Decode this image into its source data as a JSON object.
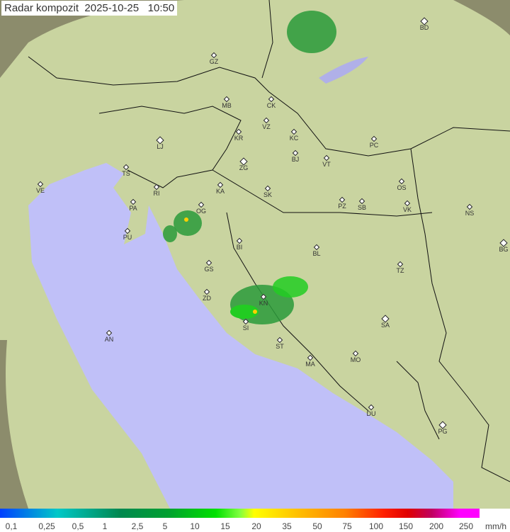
{
  "header": {
    "title": "Radar kompozit",
    "date": "2025-10-25",
    "time": "10:50"
  },
  "colors": {
    "land": "#c9d4a0",
    "sea": "#c0c0f8",
    "outside": "#8c8c6c",
    "rain_light": "#2a9a3a",
    "rain_mid": "#22cc22",
    "rain_heavy": "#ffd000"
  },
  "cities": [
    {
      "code": "BD",
      "big": true
    },
    {
      "code": "GZ"
    },
    {
      "code": "MB"
    },
    {
      "code": "CK"
    },
    {
      "code": "VZ"
    },
    {
      "code": "KR"
    },
    {
      "code": "KC"
    },
    {
      "code": "PC"
    },
    {
      "code": "LJ",
      "big": true
    },
    {
      "code": "ZG",
      "big": true
    },
    {
      "code": "BJ"
    },
    {
      "code": "VT"
    },
    {
      "code": "TS"
    },
    {
      "code": "VE"
    },
    {
      "code": "RI"
    },
    {
      "code": "KA"
    },
    {
      "code": "SK"
    },
    {
      "code": "OS"
    },
    {
      "code": "PA"
    },
    {
      "code": "OG"
    },
    {
      "code": "PZ"
    },
    {
      "code": "SB"
    },
    {
      "code": "VK"
    },
    {
      "code": "NS"
    },
    {
      "code": "PU"
    },
    {
      "code": "BG",
      "big": true
    },
    {
      "code": "BI"
    },
    {
      "code": "BL"
    },
    {
      "code": "GS"
    },
    {
      "code": "TZ"
    },
    {
      "code": "ZD"
    },
    {
      "code": "KN"
    },
    {
      "code": "SA",
      "big": true
    },
    {
      "code": "SI"
    },
    {
      "code": "AN"
    },
    {
      "code": "ST"
    },
    {
      "code": "MO"
    },
    {
      "code": "MA"
    },
    {
      "code": "DU"
    },
    {
      "code": "PG",
      "big": true
    }
  ],
  "legend": {
    "ticks": [
      "0,1",
      "0,25",
      "0,5",
      "1",
      "2,5",
      "5",
      "10",
      "15",
      "20",
      "35",
      "50",
      "75",
      "100",
      "150",
      "200",
      "250"
    ],
    "unit": "mm/h"
  }
}
